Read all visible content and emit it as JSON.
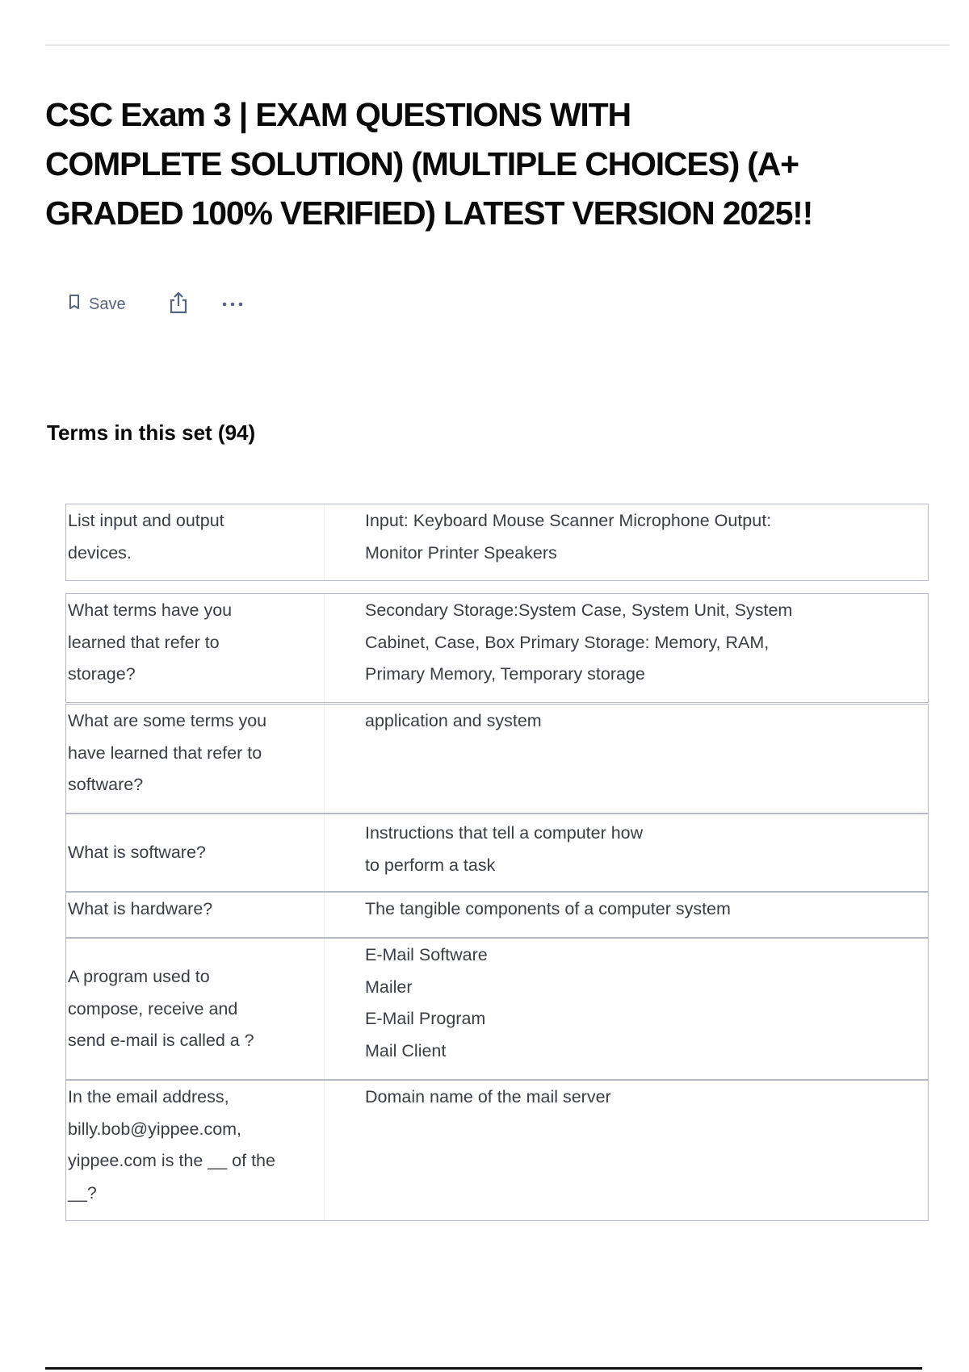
{
  "title_lines": [
    "CSC Exam 3 | EXAM QUESTIONS WITH",
    "COMPLETE SOLUTION) (MULTIPLE CHOICES) (A+",
    "GRADED 100% VERIFIED) LATEST VERSION 2025!!"
  ],
  "actions": {
    "save_label": "Save",
    "save_icon": "bookmark-icon",
    "share_icon": "share-icon",
    "more_icon": "more-horizontal-icon"
  },
  "terms_heading": "Terms in this set (94)",
  "cards": [
    {
      "term": [
        "List input and output",
        "devices."
      ],
      "definition": [
        "Input: Keyboard Mouse Scanner Microphone Output:",
        "Monitor Printer Speakers"
      ]
    },
    {
      "term": [
        "What terms have you",
        "learned that refer to",
        "storage?"
      ],
      "definition": [
        "Secondary Storage:System Case, System Unit, System",
        "Cabinet, Case, Box Primary Storage: Memory, RAM,",
        "Primary Memory, Temporary storage"
      ]
    },
    {
      "term": [
        "What are some terms you",
        "have learned that refer to",
        "software?"
      ],
      "definition": [
        "application and system"
      ]
    },
    {
      "term": [
        "What is software?"
      ],
      "definition": [
        "Instructions that tell a computer how",
        "to perform a task"
      ]
    },
    {
      "term": [
        "What is hardware?"
      ],
      "definition": [
        "The tangible components of a computer system"
      ]
    },
    {
      "term": [
        "A program used to",
        "compose, receive and",
        "send e-mail is called a ?"
      ],
      "definition": [
        "E-Mail Software",
        "Mailer",
        "E-Mail Program",
        "Mail Client"
      ]
    },
    {
      "term": [
        "In the email address,",
        "billy.bob@yippee.com,",
        "yippee.com is the __ of the",
        "__?"
      ],
      "definition": [
        "Domain name of the mail server"
      ]
    }
  ]
}
